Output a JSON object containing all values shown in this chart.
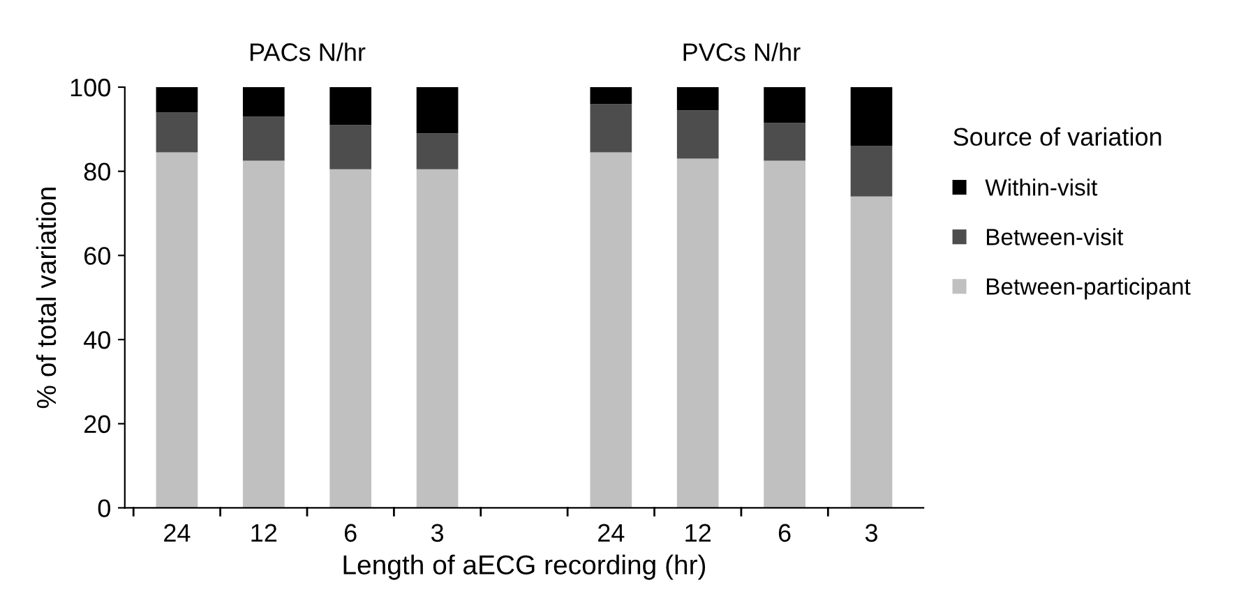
{
  "chart_data": {
    "type": "bar",
    "stacked": true,
    "ylabel": "% of total variation",
    "xlabel": "Length of aECG recording (hr)",
    "legend_title": "Source of variation",
    "legend": "right",
    "annotations": [
      "PACs N/hr",
      "PVCs N/hr"
    ],
    "categories": [
      "24",
      "12",
      "6",
      "3",
      null,
      "24",
      "12",
      "6",
      "3"
    ],
    "series": [
      {
        "name": "Between-participant",
        "color": "#c0c0c0",
        "values": [
          84.5,
          82.5,
          80.5,
          80.5,
          null,
          84.5,
          83,
          82.5,
          74
        ]
      },
      {
        "name": "Between-visit",
        "color": "#4d4d4d",
        "values": [
          9.5,
          10.5,
          10.5,
          8.5,
          null,
          11.5,
          11.5,
          9,
          12
        ]
      },
      {
        "name": "Within-visit",
        "color": "#000000",
        "values": [
          6,
          7,
          9,
          11,
          null,
          4,
          5.5,
          8.5,
          14
        ]
      }
    ],
    "ylim": [
      0,
      100
    ],
    "yticks": [
      0,
      20,
      40,
      60,
      80,
      100
    ],
    "grid": false
  }
}
